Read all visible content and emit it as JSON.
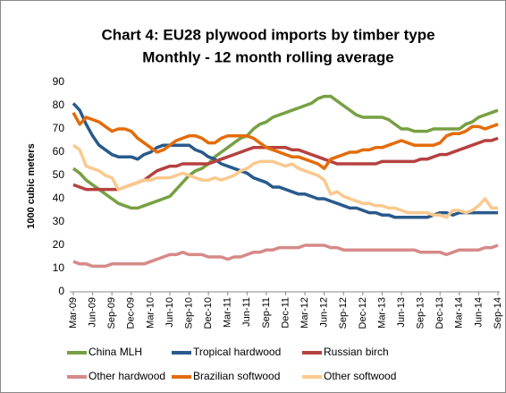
{
  "chart_data": {
    "type": "line",
    "title": "Chart 4: EU28 plywood imports by timber type",
    "subtitle": "Monthly - 12 month rolling average",
    "y_label": "1000 cubic meters",
    "categories": [
      "Mar-09",
      null,
      null,
      "Jun-09",
      null,
      null,
      "Sep-09",
      null,
      null,
      "Dec-09",
      null,
      null,
      "Mar-10",
      null,
      null,
      "Jun-10",
      null,
      null,
      "Sep-10",
      null,
      null,
      "Dec-10",
      null,
      null,
      "Mar-11",
      null,
      null,
      "Jun-11",
      null,
      null,
      "Sep-11",
      null,
      null,
      "Dec-11",
      null,
      null,
      "Mar-12",
      null,
      null,
      "Jun-12",
      null,
      null,
      "Sep-12",
      null,
      null,
      "Dec-12",
      null,
      null,
      "Mar-13",
      null,
      null,
      "Jun-13",
      null,
      null,
      "Sep-13",
      null,
      null,
      "Dec-13",
      null,
      null,
      "Mar-14",
      null,
      null,
      "Jun-14",
      null,
      null,
      "Sep-14"
    ],
    "series": [
      {
        "name": "China MLH",
        "color": "#77a043",
        "values": [
          53,
          51,
          48,
          46,
          44,
          42,
          40,
          38,
          37,
          36,
          36,
          37,
          38,
          39,
          40,
          41,
          44,
          47,
          50,
          52,
          53,
          55,
          58,
          60,
          62,
          64,
          66,
          67,
          70,
          72,
          73,
          75,
          76,
          77,
          78,
          79,
          80,
          81,
          83,
          84,
          84,
          82,
          80,
          78,
          76,
          75,
          75,
          75,
          75,
          74,
          72,
          70,
          70,
          69,
          69,
          69,
          70,
          70,
          70,
          70,
          70,
          72,
          73,
          75,
          76,
          77,
          78
        ]
      },
      {
        "name": "Tropical hardwood",
        "color": "#285a8c",
        "values": [
          81,
          78,
          72,
          67,
          63,
          61,
          59,
          58,
          58,
          58,
          57,
          59,
          60,
          62,
          63,
          63,
          63,
          63,
          63,
          61,
          60,
          58,
          57,
          55,
          54,
          53,
          52,
          51,
          49,
          48,
          47,
          45,
          45,
          44,
          43,
          42,
          42,
          41,
          40,
          40,
          39,
          38,
          37,
          36,
          36,
          35,
          34,
          34,
          33,
          33,
          32,
          32,
          32,
          32,
          32,
          32,
          33,
          34,
          34,
          33,
          34,
          34,
          34,
          34,
          34,
          34,
          34
        ]
      },
      {
        "name": "Russian birch",
        "color": "#b5413f",
        "values": [
          46,
          45,
          44,
          44,
          44,
          44,
          44,
          44,
          45,
          46,
          47,
          48,
          50,
          52,
          53,
          54,
          54,
          55,
          55,
          55,
          55,
          55,
          56,
          57,
          58,
          59,
          60,
          61,
          62,
          62,
          62,
          62,
          62,
          62,
          61,
          61,
          60,
          59,
          58,
          57,
          56,
          55,
          55,
          55,
          55,
          55,
          55,
          55,
          56,
          56,
          56,
          56,
          56,
          56,
          57,
          57,
          58,
          59,
          59,
          60,
          61,
          62,
          63,
          64,
          65,
          65,
          66
        ]
      },
      {
        "name": "Other hardwood",
        "color": "#d68a88",
        "values": [
          13,
          12,
          12,
          11,
          11,
          11,
          12,
          12,
          12,
          12,
          12,
          12,
          13,
          14,
          15,
          16,
          16,
          17,
          16,
          16,
          16,
          15,
          15,
          15,
          14,
          15,
          15,
          16,
          17,
          17,
          18,
          18,
          19,
          19,
          19,
          19,
          20,
          20,
          20,
          20,
          19,
          19,
          18,
          18,
          18,
          18,
          18,
          18,
          18,
          18,
          18,
          18,
          18,
          18,
          17,
          17,
          17,
          17,
          16,
          17,
          18,
          18,
          18,
          18,
          19,
          19,
          20
        ]
      },
      {
        "name": "Brazilian softwood",
        "color": "#e46c0a",
        "values": [
          77,
          72,
          75,
          74,
          73,
          71,
          69,
          70,
          70,
          69,
          66,
          64,
          62,
          60,
          61,
          63,
          65,
          66,
          67,
          67,
          66,
          64,
          64,
          66,
          67,
          67,
          67,
          67,
          66,
          64,
          62,
          61,
          60,
          59,
          58,
          58,
          57,
          56,
          55,
          53,
          57,
          58,
          59,
          60,
          60,
          61,
          61,
          62,
          62,
          63,
          64,
          65,
          64,
          63,
          63,
          63,
          63,
          64,
          67,
          68,
          68,
          69,
          71,
          71,
          70,
          71,
          72
        ]
      },
      {
        "name": "Other softwood",
        "color": "#fbc98e",
        "values": [
          63,
          61,
          54,
          53,
          52,
          50,
          49,
          44,
          45,
          46,
          47,
          48,
          48,
          49,
          49,
          49,
          50,
          51,
          50,
          49,
          48,
          48,
          49,
          48,
          49,
          50,
          52,
          53,
          55,
          56,
          56,
          56,
          55,
          54,
          55,
          53,
          52,
          51,
          50,
          48,
          42,
          43,
          41,
          40,
          39,
          38,
          38,
          37,
          37,
          36,
          36,
          35,
          34,
          34,
          34,
          34,
          33,
          33,
          32,
          35,
          35,
          34,
          35,
          37,
          40,
          36,
          36
        ]
      }
    ],
    "ylim": [
      0,
      90
    ],
    "yticks": [
      0,
      10,
      20,
      30,
      40,
      50,
      60,
      70,
      80,
      90
    ],
    "grid": false
  }
}
